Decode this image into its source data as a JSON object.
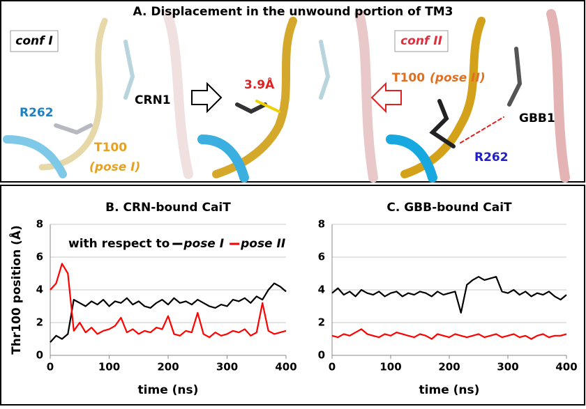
{
  "panel_a": {
    "title": "A. Displacement in the unwound portion of TM3",
    "conf_1": "conf I",
    "r262_left": "R262",
    "crn1": "CRN1",
    "t100_left": "T100",
    "pose_1_left": "(pose I)",
    "distance": "3.9Å",
    "t100_right": "T100",
    "pose_2_right": "(pose II)",
    "conf_2": "conf II",
    "gbb1": "GBB1",
    "r262_right": "R262"
  },
  "chart_data": [
    {
      "type": "line",
      "title": "B. CRN-bound CaiT",
      "xlabel": "time (ns)",
      "ylabel": "Thr100 position (Å)",
      "annotation": "with respect to",
      "x": [
        0,
        10,
        20,
        30,
        40,
        50,
        60,
        70,
        80,
        90,
        100,
        110,
        120,
        130,
        140,
        150,
        160,
        170,
        180,
        190,
        200,
        210,
        220,
        230,
        240,
        250,
        260,
        270,
        280,
        290,
        300,
        310,
        320,
        330,
        340,
        350,
        360,
        370,
        380,
        390,
        400
      ],
      "series": [
        {
          "name": "pose I",
          "color": "#000000",
          "values": [
            0.8,
            1.2,
            1.0,
            1.3,
            3.4,
            3.2,
            3.0,
            3.3,
            3.1,
            3.4,
            3.0,
            3.3,
            3.2,
            3.5,
            3.1,
            3.3,
            3.0,
            2.9,
            3.2,
            3.4,
            3.1,
            3.5,
            3.2,
            3.3,
            3.1,
            3.4,
            3.2,
            3.0,
            2.9,
            3.1,
            3.0,
            3.4,
            3.3,
            3.5,
            3.2,
            3.6,
            3.4,
            4.0,
            4.4,
            4.2,
            3.9
          ]
        },
        {
          "name": "pose II",
          "color": "#ff0000",
          "values": [
            4.0,
            4.4,
            5.6,
            5.0,
            1.5,
            2.0,
            1.4,
            1.7,
            1.3,
            1.5,
            1.6,
            1.8,
            2.3,
            1.4,
            1.6,
            1.3,
            1.5,
            1.4,
            1.7,
            1.6,
            2.4,
            1.3,
            1.2,
            1.5,
            1.4,
            2.6,
            1.3,
            1.1,
            1.4,
            1.2,
            1.3,
            1.5,
            1.4,
            1.6,
            1.2,
            1.4,
            3.2,
            1.5,
            1.3,
            1.4,
            1.5
          ]
        }
      ],
      "xlim": [
        0,
        400
      ],
      "xticks": [
        0,
        100,
        200,
        300,
        400
      ],
      "ylim": [
        0,
        8
      ],
      "yticks": [
        0,
        2,
        4,
        6,
        8
      ],
      "grid": true
    },
    {
      "type": "line",
      "title": "C. GBB-bound CaiT",
      "xlabel": "time (ns)",
      "x": [
        0,
        10,
        20,
        30,
        40,
        50,
        60,
        70,
        80,
        90,
        100,
        110,
        120,
        130,
        140,
        150,
        160,
        170,
        180,
        190,
        200,
        210,
        220,
        230,
        240,
        250,
        260,
        270,
        280,
        290,
        300,
        310,
        320,
        330,
        340,
        350,
        360,
        370,
        380,
        390,
        400
      ],
      "series": [
        {
          "name": "pose I",
          "color": "#000000",
          "values": [
            3.8,
            4.1,
            3.7,
            3.9,
            3.6,
            4.0,
            3.8,
            3.7,
            3.9,
            3.6,
            3.8,
            3.9,
            3.6,
            3.8,
            3.7,
            3.9,
            3.8,
            3.6,
            3.9,
            3.7,
            3.8,
            3.9,
            2.6,
            4.3,
            4.6,
            4.8,
            4.6,
            4.7,
            4.8,
            3.9,
            3.8,
            4.0,
            3.7,
            3.9,
            3.6,
            3.8,
            3.7,
            3.9,
            3.6,
            3.4,
            3.7
          ]
        },
        {
          "name": "pose II",
          "color": "#ff0000",
          "values": [
            1.2,
            1.1,
            1.3,
            1.2,
            1.4,
            1.6,
            1.3,
            1.2,
            1.1,
            1.3,
            1.2,
            1.4,
            1.3,
            1.2,
            1.1,
            1.3,
            1.2,
            1.0,
            1.3,
            1.2,
            1.1,
            1.3,
            1.2,
            1.1,
            1.2,
            1.3,
            1.1,
            1.2,
            1.3,
            1.1,
            1.2,
            1.3,
            1.1,
            1.2,
            1.0,
            1.2,
            1.3,
            1.1,
            1.2,
            1.2,
            1.3
          ]
        }
      ],
      "xlim": [
        0,
        400
      ],
      "xticks": [
        0,
        100,
        200,
        300,
        400
      ],
      "ylim": [
        0,
        8
      ],
      "yticks": [
        0,
        2,
        4,
        6,
        8
      ],
      "grid": true
    }
  ]
}
